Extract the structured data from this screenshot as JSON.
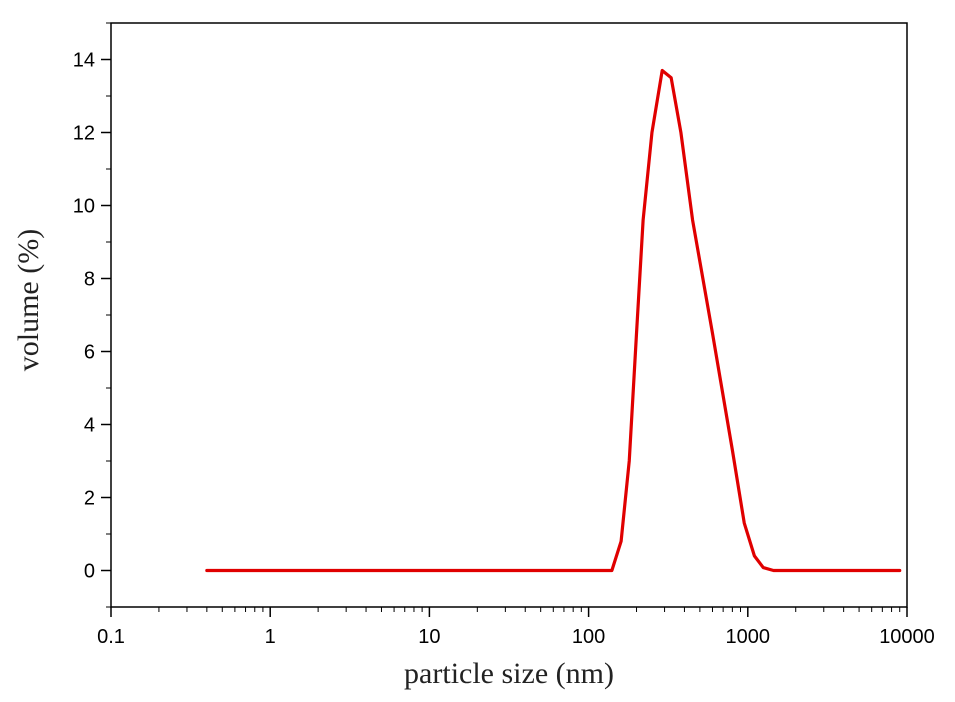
{
  "chart_data": {
    "type": "line",
    "title": "",
    "xlabel": "particle size (nm)",
    "ylabel": "volume (%)",
    "xscale": "log",
    "xlim": [
      0.1,
      10000
    ],
    "ylim": [
      -1,
      15
    ],
    "x_ticks": [
      "0.1",
      "1",
      "10",
      "100",
      "1000",
      "10000"
    ],
    "y_ticks": [
      "0",
      "2",
      "4",
      "6",
      "8",
      "10",
      "12",
      "14"
    ],
    "grid": false,
    "legend": "none",
    "series": [
      {
        "color": "#e00000",
        "points": [
          [
            0.4,
            0
          ],
          [
            140,
            0
          ],
          [
            160,
            0.8
          ],
          [
            180,
            3.0
          ],
          [
            200,
            6.5
          ],
          [
            220,
            9.6
          ],
          [
            250,
            12.0
          ],
          [
            290,
            13.7
          ],
          [
            330,
            13.5
          ],
          [
            380,
            12.0
          ],
          [
            450,
            9.6
          ],
          [
            600,
            6.5
          ],
          [
            800,
            3.3
          ],
          [
            950,
            1.3
          ],
          [
            1100,
            0.4
          ],
          [
            1250,
            0.08
          ],
          [
            1450,
            0
          ],
          [
            9000,
            0
          ]
        ]
      }
    ]
  }
}
